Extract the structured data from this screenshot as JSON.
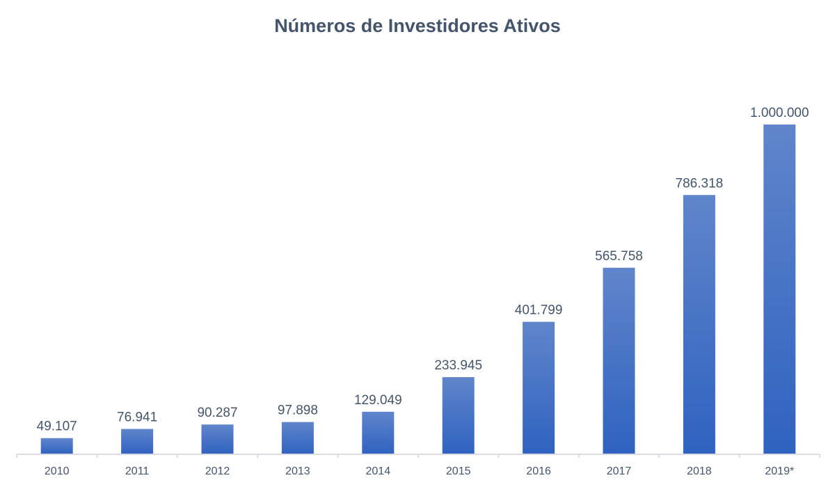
{
  "chart_data": {
    "type": "bar",
    "title": "Números de Investidores Ativos",
    "categories": [
      "2010",
      "2011",
      "2012",
      "2013",
      "2014",
      "2015",
      "2016",
      "2017",
      "2018",
      "2019*"
    ],
    "values": [
      49107,
      76941,
      90287,
      97898,
      129049,
      233945,
      401799,
      565758,
      786318,
      1000000
    ],
    "data_labels": [
      "49.107",
      "76.941",
      "90.287",
      "97.898",
      "129.049",
      "233.945",
      "401.799",
      "565.758",
      "786.318",
      "1.000.000"
    ],
    "xlabel": "",
    "ylabel": "",
    "ylim": [
      0,
      1000000
    ],
    "grid": false,
    "legend": "none",
    "colors": {
      "bar_top": "#6085cb",
      "bar_bottom": "#2f62c0",
      "text": "#44546a",
      "axis": "#d9dde3"
    }
  }
}
